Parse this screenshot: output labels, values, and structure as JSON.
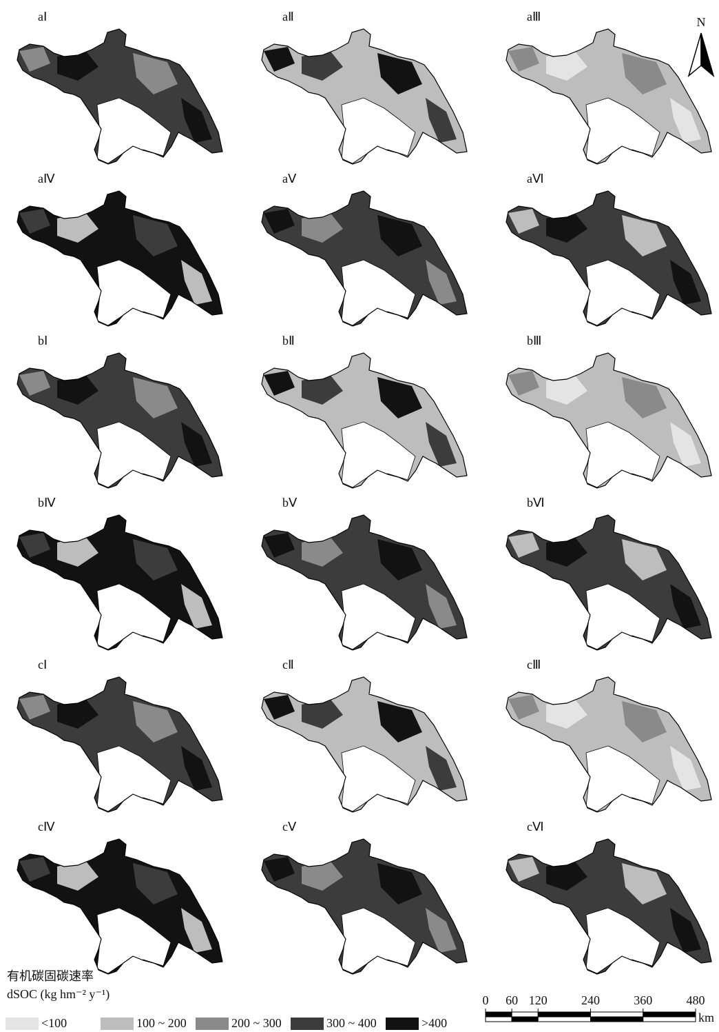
{
  "panels": [
    {
      "label": "aⅠ"
    },
    {
      "label": "aⅡ"
    },
    {
      "label": "aⅢ"
    },
    {
      "label": "aⅣ"
    },
    {
      "label": "aⅤ"
    },
    {
      "label": "aⅥ"
    },
    {
      "label": "bⅠ"
    },
    {
      "label": "bⅡ"
    },
    {
      "label": "bⅢ"
    },
    {
      "label": "bⅣ"
    },
    {
      "label": "bⅤ"
    },
    {
      "label": "bⅥ"
    },
    {
      "label": "cⅠ"
    },
    {
      "label": "cⅡ"
    },
    {
      "label": "cⅢ"
    },
    {
      "label": "cⅣ"
    },
    {
      "label": "cⅤ"
    },
    {
      "label": "cⅥ"
    }
  ],
  "north_arrow": {
    "label": "N"
  },
  "legend": {
    "title": "有机碳固碳速率",
    "subtitle": "dSOC (kg hm⁻² y⁻¹)",
    "items": [
      {
        "label": "<100",
        "color": "#e4e4e4"
      },
      {
        "label": "100 ~ 200",
        "color": "#bdbdbd"
      },
      {
        "label": "200 ~ 300",
        "color": "#8a8a8a"
      },
      {
        "label": "300 ~ 400",
        "color": "#3c3c3c"
      },
      {
        "label": ">400",
        "color": "#121212"
      }
    ]
  },
  "scale_bar": {
    "ticks": [
      0,
      60,
      120,
      240,
      360,
      480
    ],
    "unit": "km"
  }
}
